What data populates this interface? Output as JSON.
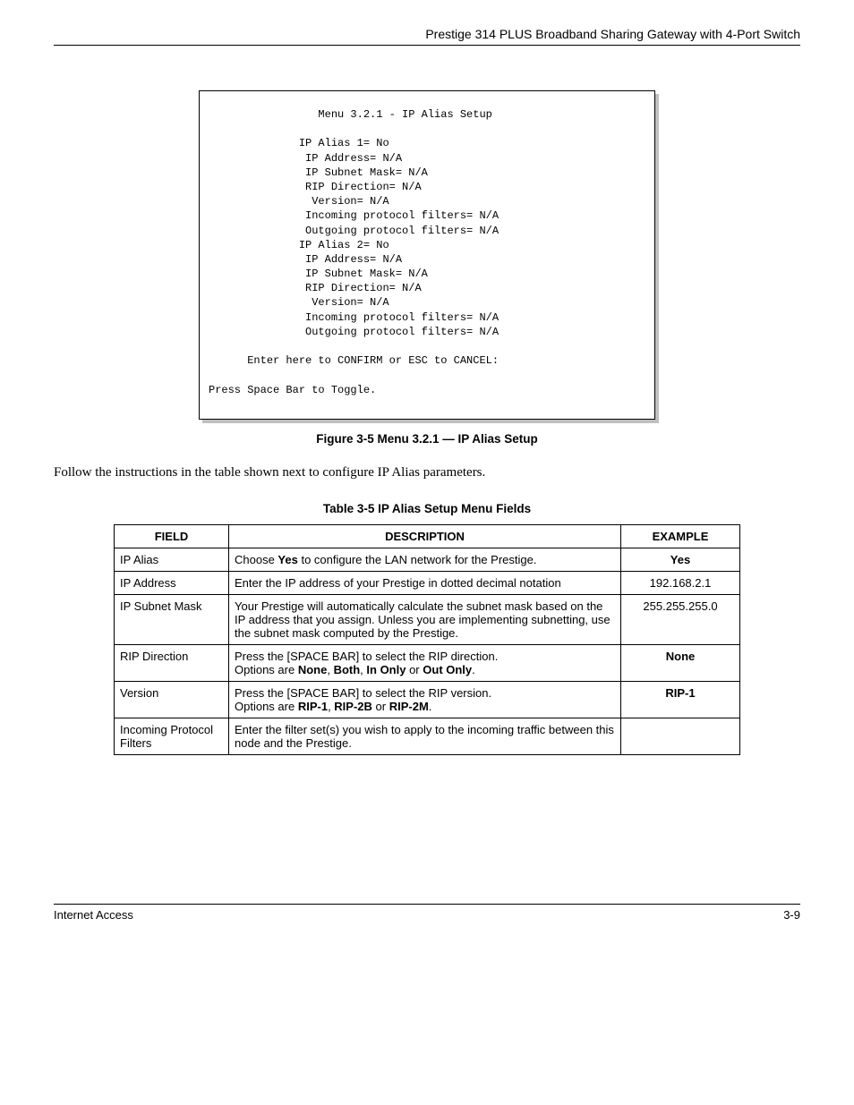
{
  "header": {
    "title": "Prestige 314 PLUS Broadband Sharing Gateway with 4-Port Switch"
  },
  "terminal": {
    "menu_title": "Menu 3.2.1 - IP Alias Setup",
    "alias1_label": "IP Alias 1= No",
    "alias1_ip": "IP Address= N/A",
    "alias1_mask": "IP Subnet Mask= N/A",
    "alias1_rip": "RIP Direction= N/A",
    "alias1_ver": "Version= N/A",
    "alias1_in": "Incoming protocol filters= N/A",
    "alias1_out": "Outgoing protocol filters= N/A",
    "alias2_label": "IP Alias 2= No",
    "alias2_ip": "IP Address= N/A",
    "alias2_mask": "IP Subnet Mask= N/A",
    "alias2_rip": "RIP Direction= N/A",
    "alias2_ver": "Version= N/A",
    "alias2_in": "Incoming protocol filters= N/A",
    "alias2_out": "Outgoing protocol filters= N/A",
    "confirm": "Enter here to CONFIRM or ESC to CANCEL:",
    "toggle": "Press Space Bar to Toggle."
  },
  "figure": {
    "caption": "Figure 3-5 Menu 3.2.1 — IP Alias Setup"
  },
  "paragraph": {
    "text": "Follow the instructions in the table shown next to configure IP Alias parameters."
  },
  "table": {
    "caption": "Table 3-5 IP Alias Setup Menu Fields",
    "headers": {
      "field": "FIELD",
      "description": "DESCRIPTION",
      "example": "EXAMPLE"
    },
    "rows": [
      {
        "field": "IP Alias",
        "desc_pre": "Choose ",
        "desc_b1": "Yes",
        "desc_post": " to configure the LAN network for the Prestige.",
        "example": "Yes",
        "example_bold": true
      },
      {
        "field": "IP Address",
        "desc_plain": "Enter the IP address of your Prestige in dotted decimal notation",
        "example": "192.168.2.1",
        "example_bold": false
      },
      {
        "field": "IP Subnet Mask",
        "desc_plain": "Your Prestige will automatically calculate the subnet mask based on the IP address that you assign. Unless you are implementing subnetting, use the subnet mask computed by the Prestige.",
        "example": "255.255.255.0",
        "example_bold": false
      },
      {
        "field": "RIP Direction",
        "desc_line1": "Press the [SPACE BAR] to select the RIP direction.",
        "desc_opts_pre": "Options are ",
        "opt1": "None",
        "sep1": ", ",
        "opt2": "Both",
        "sep2": ", ",
        "opt3": "In Only",
        "sep3": " or ",
        "opt4": "Out Only",
        "sep4": ".",
        "example": "None",
        "example_bold": true
      },
      {
        "field": "Version",
        "desc_line1": "Press the [SPACE BAR] to select the RIP version.",
        "desc_opts_pre": "Options are ",
        "opt1": "RIP-1",
        "sep1": ", ",
        "opt2": "RIP-2B",
        "sep2": " or ",
        "opt3": "RIP-2M",
        "sep3": ".",
        "example": "RIP-1",
        "example_bold": true
      },
      {
        "field": "Incoming Protocol Filters",
        "desc_plain": "Enter the filter set(s) you wish to apply to the incoming traffic between this node and the Prestige.",
        "example": "",
        "example_bold": false
      }
    ]
  },
  "footer": {
    "left": "Internet Access",
    "right": "3-9"
  }
}
